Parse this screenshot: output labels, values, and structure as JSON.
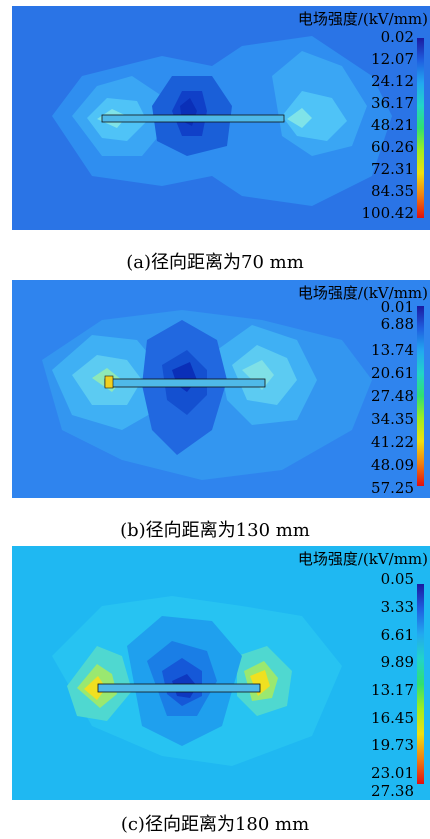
{
  "panels": [
    {
      "colorbar_title": "电场强度/(kV/mm)",
      "ticks": [
        "0.02",
        "12.07",
        "24.12",
        "36.17",
        "48.21",
        "60.26",
        "72.31",
        "84.35",
        "100.42"
      ],
      "caption": "(a)径向距离为70 mm",
      "background_color": "#2a74e6"
    },
    {
      "colorbar_title": "电场强度/(kV/mm)",
      "ticks": [
        "0.01",
        "6.88",
        "13.74",
        "20.61",
        "27.48",
        "34.35",
        "41.22",
        "48.09",
        "57.25"
      ],
      "caption": "(b)径向距离为130 mm",
      "background_color": "#2f84ee"
    },
    {
      "colorbar_title": "电场强度/(kV/mm)",
      "ticks": [
        "0.05",
        "3.33",
        "6.61",
        "9.89",
        "13.17",
        "16.45",
        "19.73",
        "23.01",
        "27.38"
      ],
      "caption": "(c)径向距离为180 mm",
      "background_color": "#1fb8f2"
    }
  ]
}
